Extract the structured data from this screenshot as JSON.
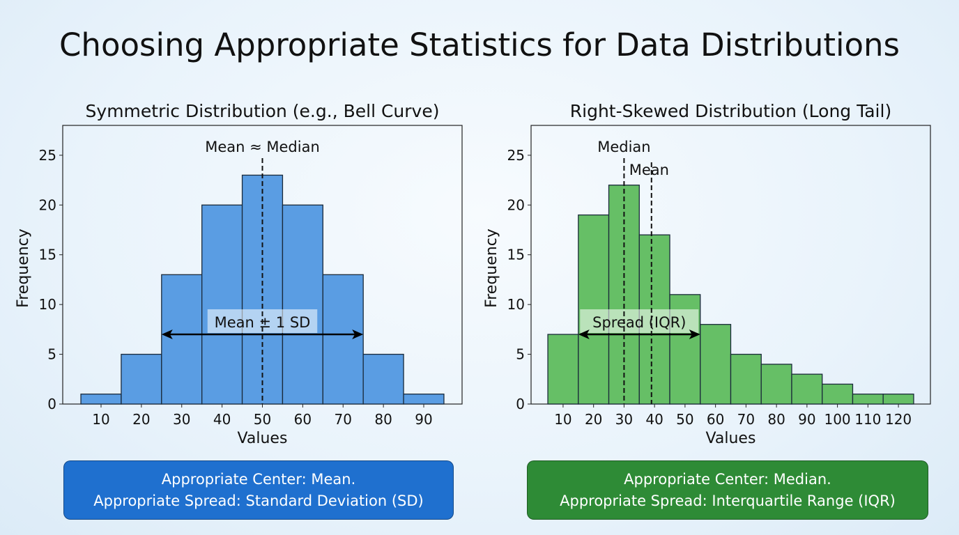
{
  "title": "Choosing Appropriate Statistics for Data Distributions",
  "chart_data": [
    {
      "type": "bar",
      "title": "Symmetric Distribution (e.g., Bell Curve)",
      "xlabel": "Values",
      "ylabel": "Frequency",
      "bin_width": 10,
      "categories": [
        10,
        20,
        30,
        40,
        50,
        60,
        70,
        80,
        90
      ],
      "values": [
        1,
        5,
        13,
        20,
        23,
        20,
        13,
        5,
        1
      ],
      "xticks": [
        10,
        20,
        30,
        40,
        50,
        60,
        70,
        80,
        90
      ],
      "yticks": [
        0,
        5,
        10,
        15,
        20,
        25
      ],
      "xlim": [
        0.5,
        99.5
      ],
      "ylim": [
        0,
        28
      ],
      "grid": false,
      "color": "#5a9de3",
      "vlines": [
        {
          "x": 50,
          "label": "Mean ≈ Median"
        }
      ],
      "span": {
        "from": 25,
        "to": 75,
        "y": 7,
        "label": "Mean ± 1 SD"
      }
    },
    {
      "type": "bar",
      "title": "Right-Skewed Distribution (Long Tail)",
      "xlabel": "Values",
      "ylabel": "Frequency",
      "bin_width": 10,
      "categories": [
        10,
        20,
        30,
        40,
        50,
        60,
        70,
        80,
        90,
        100,
        110,
        120
      ],
      "values": [
        7,
        19,
        22,
        17,
        11,
        8,
        5,
        4,
        3,
        2,
        1,
        1
      ],
      "xticks": [
        10,
        20,
        30,
        40,
        50,
        60,
        70,
        80,
        90,
        100,
        110,
        120
      ],
      "yticks": [
        0,
        5,
        10,
        15,
        20,
        25
      ],
      "xlim": [
        -0.5,
        130.5
      ],
      "ylim": [
        0,
        28
      ],
      "grid": false,
      "color": "#66bf66",
      "vlines": [
        {
          "x": 30,
          "label": "Median"
        },
        {
          "x": 39,
          "label": "Mean"
        }
      ],
      "span": {
        "from": 15,
        "to": 55,
        "y": 7,
        "label": "Spread (IQR)"
      }
    }
  ],
  "boxes": [
    {
      "line1": "Appropriate Center: Mean.",
      "line2": "Appropriate Spread: Standard Deviation (SD)",
      "color": "#1f70cf"
    },
    {
      "line1": "Appropriate Center: Median.",
      "line2": "Appropriate Spread: Interquartile Range (IQR)",
      "color": "#2e8b36"
    }
  ]
}
